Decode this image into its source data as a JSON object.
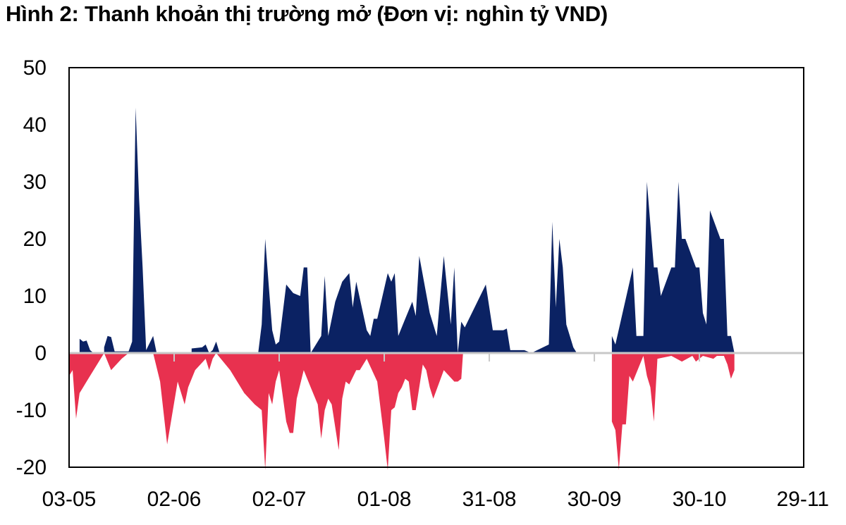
{
  "title": "Hình 2: Thanh khoản thị trường mở (Đơn vị: nghìn tỷ VND)",
  "colors": {
    "positive": "#0b2263",
    "negative": "#e8314f",
    "axis": "#000000",
    "zero_line": "#c8c8c8"
  },
  "chart_data": {
    "type": "area",
    "title": "Hình 2: Thanh khoản thị trường mở (Đơn vị: nghìn tỷ VND)",
    "ylim": [
      -20,
      50
    ],
    "yticks": [
      -20,
      -10,
      0,
      10,
      20,
      30,
      40,
      50
    ],
    "xlim": [
      0,
      207
    ],
    "xticks": [
      {
        "pos": 0,
        "label": "03-05"
      },
      {
        "pos": 30,
        "label": "02-06"
      },
      {
        "pos": 60,
        "label": "02-07"
      },
      {
        "pos": 90,
        "label": "01-08"
      },
      {
        "pos": 120,
        "label": "31-08"
      },
      {
        "pos": 150,
        "label": "30-09"
      },
      {
        "pos": 180,
        "label": "30-10"
      },
      {
        "pos": 210,
        "label": "29-11"
      }
    ],
    "grid": false,
    "legend": "none",
    "series": [
      {
        "role": "positive",
        "points": [
          [
            0,
            0
          ],
          [
            3,
            0
          ],
          [
            3,
            2.5
          ],
          [
            4,
            2
          ],
          [
            5,
            2.2
          ],
          [
            6,
            0.5
          ],
          [
            7,
            0
          ],
          [
            10,
            0
          ],
          [
            10,
            1
          ],
          [
            11,
            3
          ],
          [
            12,
            2.8
          ],
          [
            13,
            0.3
          ],
          [
            17,
            0.3
          ],
          [
            18,
            2
          ],
          [
            19,
            43
          ],
          [
            20,
            27
          ],
          [
            21,
            15
          ],
          [
            22,
            0.5
          ],
          [
            24,
            3
          ],
          [
            25,
            0
          ],
          [
            35,
            0
          ],
          [
            35,
            0.8
          ],
          [
            38,
            1
          ],
          [
            39,
            1.5
          ],
          [
            40,
            0
          ],
          [
            41,
            0.5
          ],
          [
            42,
            2
          ],
          [
            43,
            0
          ],
          [
            54,
            0
          ],
          [
            55,
            5
          ],
          [
            56,
            20
          ],
          [
            57,
            12
          ],
          [
            58,
            4
          ],
          [
            59,
            1.5
          ],
          [
            60,
            2
          ],
          [
            62,
            12
          ],
          [
            64,
            10.5
          ],
          [
            66,
            10
          ],
          [
            67,
            15
          ],
          [
            68,
            15
          ],
          [
            69,
            0
          ],
          [
            72,
            3
          ],
          [
            73,
            13.5
          ],
          [
            74,
            3
          ],
          [
            76,
            9
          ],
          [
            78,
            12.5
          ],
          [
            80,
            14
          ],
          [
            81,
            8
          ],
          [
            82,
            12.5
          ],
          [
            85,
            4
          ],
          [
            86,
            3
          ],
          [
            87,
            6
          ],
          [
            88,
            6
          ],
          [
            91,
            14
          ],
          [
            92,
            12.5
          ],
          [
            93,
            14
          ],
          [
            94,
            3
          ],
          [
            96,
            6
          ],
          [
            98,
            9
          ],
          [
            99,
            6.5
          ],
          [
            100,
            17
          ],
          [
            103,
            7
          ],
          [
            104,
            5
          ],
          [
            105,
            3
          ],
          [
            107,
            17
          ],
          [
            109,
            5
          ],
          [
            110,
            15
          ],
          [
            111,
            0
          ],
          [
            112,
            5.5
          ],
          [
            113,
            4.5
          ],
          [
            119,
            12
          ],
          [
            121,
            4
          ],
          [
            124,
            4
          ],
          [
            125,
            4.3
          ],
          [
            126,
            0.5
          ],
          [
            128,
            0.5
          ],
          [
            130,
            0.5
          ],
          [
            132,
            0
          ],
          [
            137,
            1.5
          ],
          [
            138,
            23
          ],
          [
            139,
            8
          ],
          [
            140,
            20
          ],
          [
            141,
            15
          ],
          [
            142,
            5
          ],
          [
            143,
            3
          ],
          [
            144,
            1
          ],
          [
            145,
            0
          ],
          [
            148,
            0
          ],
          [
            155,
            0
          ],
          [
            155,
            3
          ],
          [
            156,
            1.5
          ],
          [
            161,
            15
          ],
          [
            162,
            3
          ],
          [
            164,
            3
          ],
          [
            165,
            30
          ],
          [
            167,
            15
          ],
          [
            168,
            15
          ],
          [
            169,
            10
          ],
          [
            172,
            15
          ],
          [
            173,
            15
          ],
          [
            174,
            30
          ],
          [
            175,
            20
          ],
          [
            176,
            20
          ],
          [
            179,
            15
          ],
          [
            180,
            15
          ],
          [
            181,
            7
          ],
          [
            182,
            5
          ],
          [
            183,
            25
          ],
          [
            186,
            20
          ],
          [
            187,
            20
          ],
          [
            188,
            3
          ],
          [
            189,
            3
          ],
          [
            190,
            0
          ]
        ]
      },
      {
        "role": "negative",
        "points": [
          [
            0,
            0
          ],
          [
            0,
            -4
          ],
          [
            1,
            -3
          ],
          [
            2,
            -11.5
          ],
          [
            3,
            -7
          ],
          [
            4,
            -6
          ],
          [
            5,
            -5
          ],
          [
            8,
            -2
          ],
          [
            10,
            0
          ],
          [
            12,
            -3
          ],
          [
            15,
            -1
          ],
          [
            16,
            -0.5
          ],
          [
            17,
            0
          ],
          [
            24,
            0
          ],
          [
            26,
            -5
          ],
          [
            28,
            -16
          ],
          [
            31,
            -5
          ],
          [
            33,
            -9
          ],
          [
            34,
            -6
          ],
          [
            36,
            -3
          ],
          [
            39,
            -1
          ],
          [
            40,
            -3
          ],
          [
            41,
            -1
          ],
          [
            42,
            0
          ],
          [
            46,
            -3
          ],
          [
            50,
            -7
          ],
          [
            53,
            -9
          ],
          [
            55,
            -10
          ],
          [
            56,
            -20.5
          ],
          [
            57,
            -7
          ],
          [
            58,
            -9
          ],
          [
            59,
            -5
          ],
          [
            60,
            -3
          ],
          [
            62,
            -12
          ],
          [
            63,
            -14
          ],
          [
            64,
            -14
          ],
          [
            65,
            -8
          ],
          [
            67,
            -3
          ],
          [
            69,
            -6
          ],
          [
            71,
            -9
          ],
          [
            72,
            -15
          ],
          [
            73,
            -10
          ],
          [
            74,
            -8
          ],
          [
            75,
            -9
          ],
          [
            76,
            -13
          ],
          [
            77,
            -17
          ],
          [
            78,
            -8
          ],
          [
            79,
            -5
          ],
          [
            80,
            -5.5
          ],
          [
            82,
            -3
          ],
          [
            83,
            -3
          ],
          [
            84,
            -2
          ],
          [
            85,
            -1
          ],
          [
            88,
            -5
          ],
          [
            90,
            -15
          ],
          [
            91,
            -20.5
          ],
          [
            92,
            -10
          ],
          [
            93,
            -9.5
          ],
          [
            94,
            -7
          ],
          [
            95,
            -6
          ],
          [
            96,
            -4.5
          ],
          [
            97,
            -5
          ],
          [
            98,
            -10
          ],
          [
            99,
            -10
          ],
          [
            101,
            -2
          ],
          [
            102,
            -3
          ],
          [
            103,
            -6
          ],
          [
            104,
            -8
          ],
          [
            107,
            -3
          ],
          [
            110,
            -5
          ],
          [
            111,
            -5
          ],
          [
            112,
            -4.5
          ],
          [
            112.5,
            0
          ],
          [
            155,
            0
          ],
          [
            155,
            -12
          ],
          [
            156,
            -13.5
          ],
          [
            157,
            -20.5
          ],
          [
            158,
            -12.5
          ],
          [
            159,
            -12.5
          ],
          [
            160,
            -4
          ],
          [
            161,
            -5
          ],
          [
            163,
            -2
          ],
          [
            164,
            -0.5
          ],
          [
            165,
            -4
          ],
          [
            166,
            -6
          ],
          [
            167,
            -12
          ],
          [
            168,
            -1
          ],
          [
            172,
            -0.5
          ],
          [
            175,
            -1.5
          ],
          [
            178,
            -0.5
          ],
          [
            179,
            -1.5
          ],
          [
            181,
            -0.5
          ],
          [
            184,
            -1
          ],
          [
            185,
            -0.5
          ],
          [
            187,
            -0.5
          ],
          [
            188,
            -2
          ],
          [
            189,
            -4.5
          ],
          [
            190,
            -3
          ],
          [
            190,
            0
          ]
        ]
      }
    ]
  }
}
